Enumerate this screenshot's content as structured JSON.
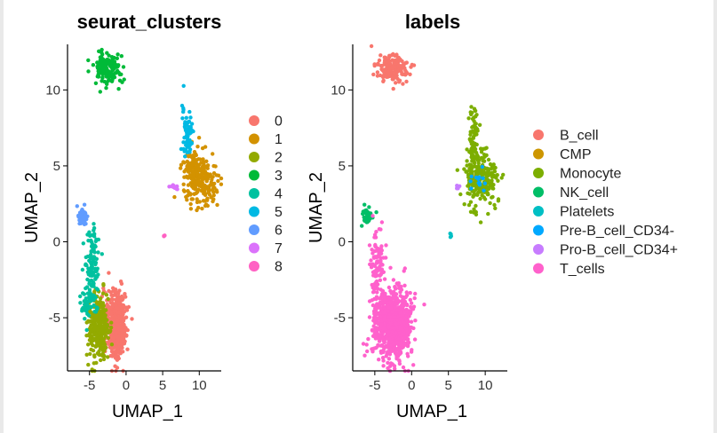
{
  "chart_data": [
    {
      "type": "scatter",
      "title": "seurat_clusters",
      "xlabel": "UMAP_1",
      "ylabel": "UMAP_2",
      "xlim": [
        -8,
        13
      ],
      "ylim": [
        -8.5,
        13
      ],
      "xticks": [
        -5,
        0,
        5,
        10
      ],
      "yticks": [
        -5,
        0,
        5,
        10
      ],
      "legend_position": "right",
      "series": [
        {
          "name": "0",
          "color": "#F8766D",
          "clusters": [
            {
              "cx": -1.4,
              "cy": -5.5,
              "sx": 0.65,
              "sy": 1.0,
              "n": 520
            }
          ]
        },
        {
          "name": "1",
          "color": "#D39200",
          "clusters": [
            {
              "cx": 10.2,
              "cy": 4.0,
              "sx": 1.1,
              "sy": 0.75,
              "n": 200
            },
            {
              "cx": 8.9,
              "cy": 5.3,
              "sx": 0.5,
              "sy": 0.4,
              "n": 40
            }
          ]
        },
        {
          "name": "2",
          "color": "#93AA00",
          "clusters": [
            {
              "cx": -3.9,
              "cy": -5.7,
              "sx": 0.7,
              "sy": 0.95,
              "n": 320
            }
          ]
        },
        {
          "name": "3",
          "color": "#00BA38",
          "clusters": [
            {
              "cx": -2.4,
              "cy": 11.4,
              "sx": 1.0,
              "sy": 0.45,
              "n": 160
            }
          ]
        },
        {
          "name": "4",
          "color": "#00C19F",
          "clusters": [
            {
              "cx": -4.6,
              "cy": -1.8,
              "sx": 0.55,
              "sy": 1.4,
              "n": 110
            },
            {
              "cx": -5.3,
              "cy": -4.2,
              "sx": 0.4,
              "sy": 0.5,
              "n": 35
            }
          ]
        },
        {
          "name": "5",
          "color": "#00B9E3",
          "clusters": [
            {
              "cx": 8.4,
              "cy": 7.1,
              "sx": 0.35,
              "sy": 0.9,
              "n": 70
            }
          ]
        },
        {
          "name": "6",
          "color": "#619CFF",
          "clusters": [
            {
              "cx": -6.0,
              "cy": 1.7,
              "sx": 0.3,
              "sy": 0.3,
              "n": 45
            }
          ]
        },
        {
          "name": "7",
          "color": "#DB72FB",
          "clusters": [
            {
              "cx": 6.4,
              "cy": 3.6,
              "sx": 0.3,
              "sy": 0.1,
              "n": 12
            }
          ]
        },
        {
          "name": "8",
          "color": "#FF61C3",
          "clusters": [
            {
              "cx": 5.2,
              "cy": 0.4,
              "sx": 0.08,
              "sy": 0.08,
              "n": 4
            }
          ]
        }
      ]
    },
    {
      "type": "scatter",
      "title": "labels",
      "xlabel": "UMAP_1",
      "ylabel": "UMAP_2",
      "xlim": [
        -8,
        13
      ],
      "ylim": [
        -8.5,
        13
      ],
      "xticks": [
        -5,
        0,
        5,
        10
      ],
      "yticks": [
        -5,
        0,
        5,
        10
      ],
      "legend_position": "right",
      "series": [
        {
          "name": "B_cell",
          "color": "#F8766D",
          "clusters": [
            {
              "cx": -2.4,
              "cy": 11.4,
              "sx": 1.0,
              "sy": 0.45,
              "n": 160
            }
          ]
        },
        {
          "name": "CMP",
          "color": "#CD9600",
          "clusters": [
            {
              "cx": 8.5,
              "cy": 4.0,
              "sx": 0.2,
              "sy": 0.2,
              "n": 5
            }
          ]
        },
        {
          "name": "Monocyte",
          "color": "#7CAE00",
          "clusters": [
            {
              "cx": 9.4,
              "cy": 4.2,
              "sx": 1.2,
              "sy": 0.9,
              "n": 230
            },
            {
              "cx": 8.4,
              "cy": 6.8,
              "sx": 0.35,
              "sy": 1.0,
              "n": 70
            }
          ]
        },
        {
          "name": "NK_cell",
          "color": "#00BE67",
          "clusters": [
            {
              "cx": -6.0,
              "cy": 1.7,
              "sx": 0.3,
              "sy": 0.3,
              "n": 45
            }
          ]
        },
        {
          "name": "Platelets",
          "color": "#00BFC4",
          "clusters": [
            {
              "cx": 5.2,
              "cy": 0.4,
              "sx": 0.08,
              "sy": 0.08,
              "n": 4
            }
          ]
        },
        {
          "name": "Pre-B_cell_CD34-",
          "color": "#00A9FF",
          "clusters": [
            {
              "cx": 9.2,
              "cy": 4.0,
              "sx": 0.6,
              "sy": 0.5,
              "n": 14
            }
          ]
        },
        {
          "name": "Pro-B_cell_CD34+",
          "color": "#C77CFF",
          "clusters": [
            {
              "cx": 6.4,
              "cy": 3.6,
              "sx": 0.3,
              "sy": 0.1,
              "n": 6
            }
          ]
        },
        {
          "name": "T_cells",
          "color": "#FF61CC",
          "clusters": [
            {
              "cx": -2.5,
              "cy": -5.5,
              "sx": 1.2,
              "sy": 1.1,
              "n": 850
            },
            {
              "cx": -4.6,
              "cy": -1.8,
              "sx": 0.55,
              "sy": 1.4,
              "n": 110
            }
          ]
        }
      ]
    }
  ]
}
